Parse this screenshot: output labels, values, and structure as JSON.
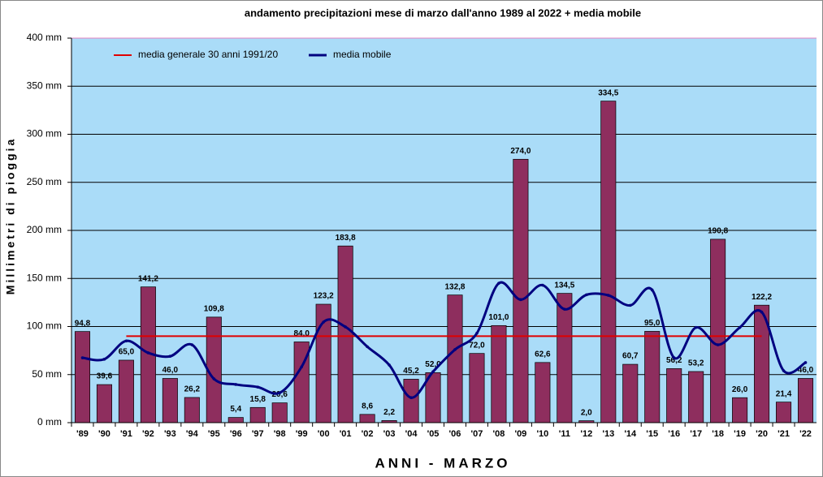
{
  "chart_data": {
    "type": "bar",
    "title": "andamento precipitazioni mese di marzo dall'anno 1989 al 2022 + media mobile",
    "x_label": "ANNI - MARZO",
    "y_label": "Millimetri di pioggia",
    "categories": [
      "'89",
      "'90",
      "'91",
      "'92",
      "'93",
      "'94",
      "'95",
      "'96",
      "'97",
      "'98",
      "'99",
      "'00",
      "'01",
      "'02",
      "'03",
      "'04",
      "'05",
      "'06",
      "'07",
      "'08",
      "'09",
      "'10",
      "'11",
      "'12",
      "'13",
      "'14",
      "'15",
      "'16",
      "'17",
      "'18",
      "'19",
      "'20",
      "'21",
      "'22"
    ],
    "values": [
      94.8,
      39.6,
      65.0,
      141.2,
      46.0,
      26.2,
      109.8,
      5.4,
      15.8,
      20.6,
      84.0,
      123.2,
      183.8,
      8.6,
      2.2,
      45.2,
      52.0,
      132.8,
      72.0,
      101.0,
      274.0,
      62.6,
      134.5,
      2.0,
      334.5,
      60.7,
      95.0,
      56.2,
      53.2,
      190.8,
      26.0,
      122.2,
      21.4,
      46.0
    ],
    "value_labels": [
      "94,8",
      "39,6",
      "65,0",
      "141,2",
      "46,0",
      "26,2",
      "109,8",
      "5,4",
      "15,8",
      "20,6",
      "84,0",
      "123,2",
      "183,8",
      "8,6",
      "2,2",
      "45,2",
      "52,0",
      "132,8",
      "72,0",
      "101,0",
      "274,0",
      "62,6",
      "134,5",
      "2,0",
      "334,5",
      "60,7",
      "95,0",
      "56,2",
      "53,2",
      "190,8",
      "26,0",
      "122,2",
      "21,4",
      "46,0"
    ],
    "color": "#8e2e5e",
    "series": [
      {
        "name": "media generale 30 anni 1991/20",
        "color": "#e00000",
        "values": [
          null,
          null,
          90,
          90,
          90,
          90,
          90,
          90,
          90,
          90,
          90,
          90,
          90,
          90,
          90,
          90,
          90,
          90,
          90,
          90,
          90,
          90,
          90,
          90,
          90,
          90,
          90,
          90,
          90,
          90,
          90,
          90,
          null,
          null
        ]
      },
      {
        "name": "media mobile",
        "color": "#000080",
        "values": [
          67.5,
          66,
          85,
          72.6,
          69,
          81,
          45.6,
          39.7,
          37,
          31,
          58,
          104.6,
          99.6,
          79,
          60,
          26,
          53,
          76,
          93,
          145,
          128,
          143,
          118,
          133,
          132.5,
          122,
          138,
          67.5,
          99,
          81,
          99,
          115,
          54,
          62.5
        ]
      }
    ],
    "ylim": [
      0,
      400
    ],
    "yticks": [
      {
        "value": 0,
        "label": "0 mm"
      },
      {
        "value": 50,
        "label": "50 mm"
      },
      {
        "value": 100,
        "label": "100 mm"
      },
      {
        "value": 150,
        "label": "150 mm"
      },
      {
        "value": 200,
        "label": "200 mm"
      },
      {
        "value": 250,
        "label": "250 mm"
      },
      {
        "value": 300,
        "label": "300 mm"
      },
      {
        "value": 350,
        "label": "350 mm"
      },
      {
        "value": 400,
        "label": "400 mm"
      }
    ],
    "grid": true,
    "legend": "top-left"
  }
}
